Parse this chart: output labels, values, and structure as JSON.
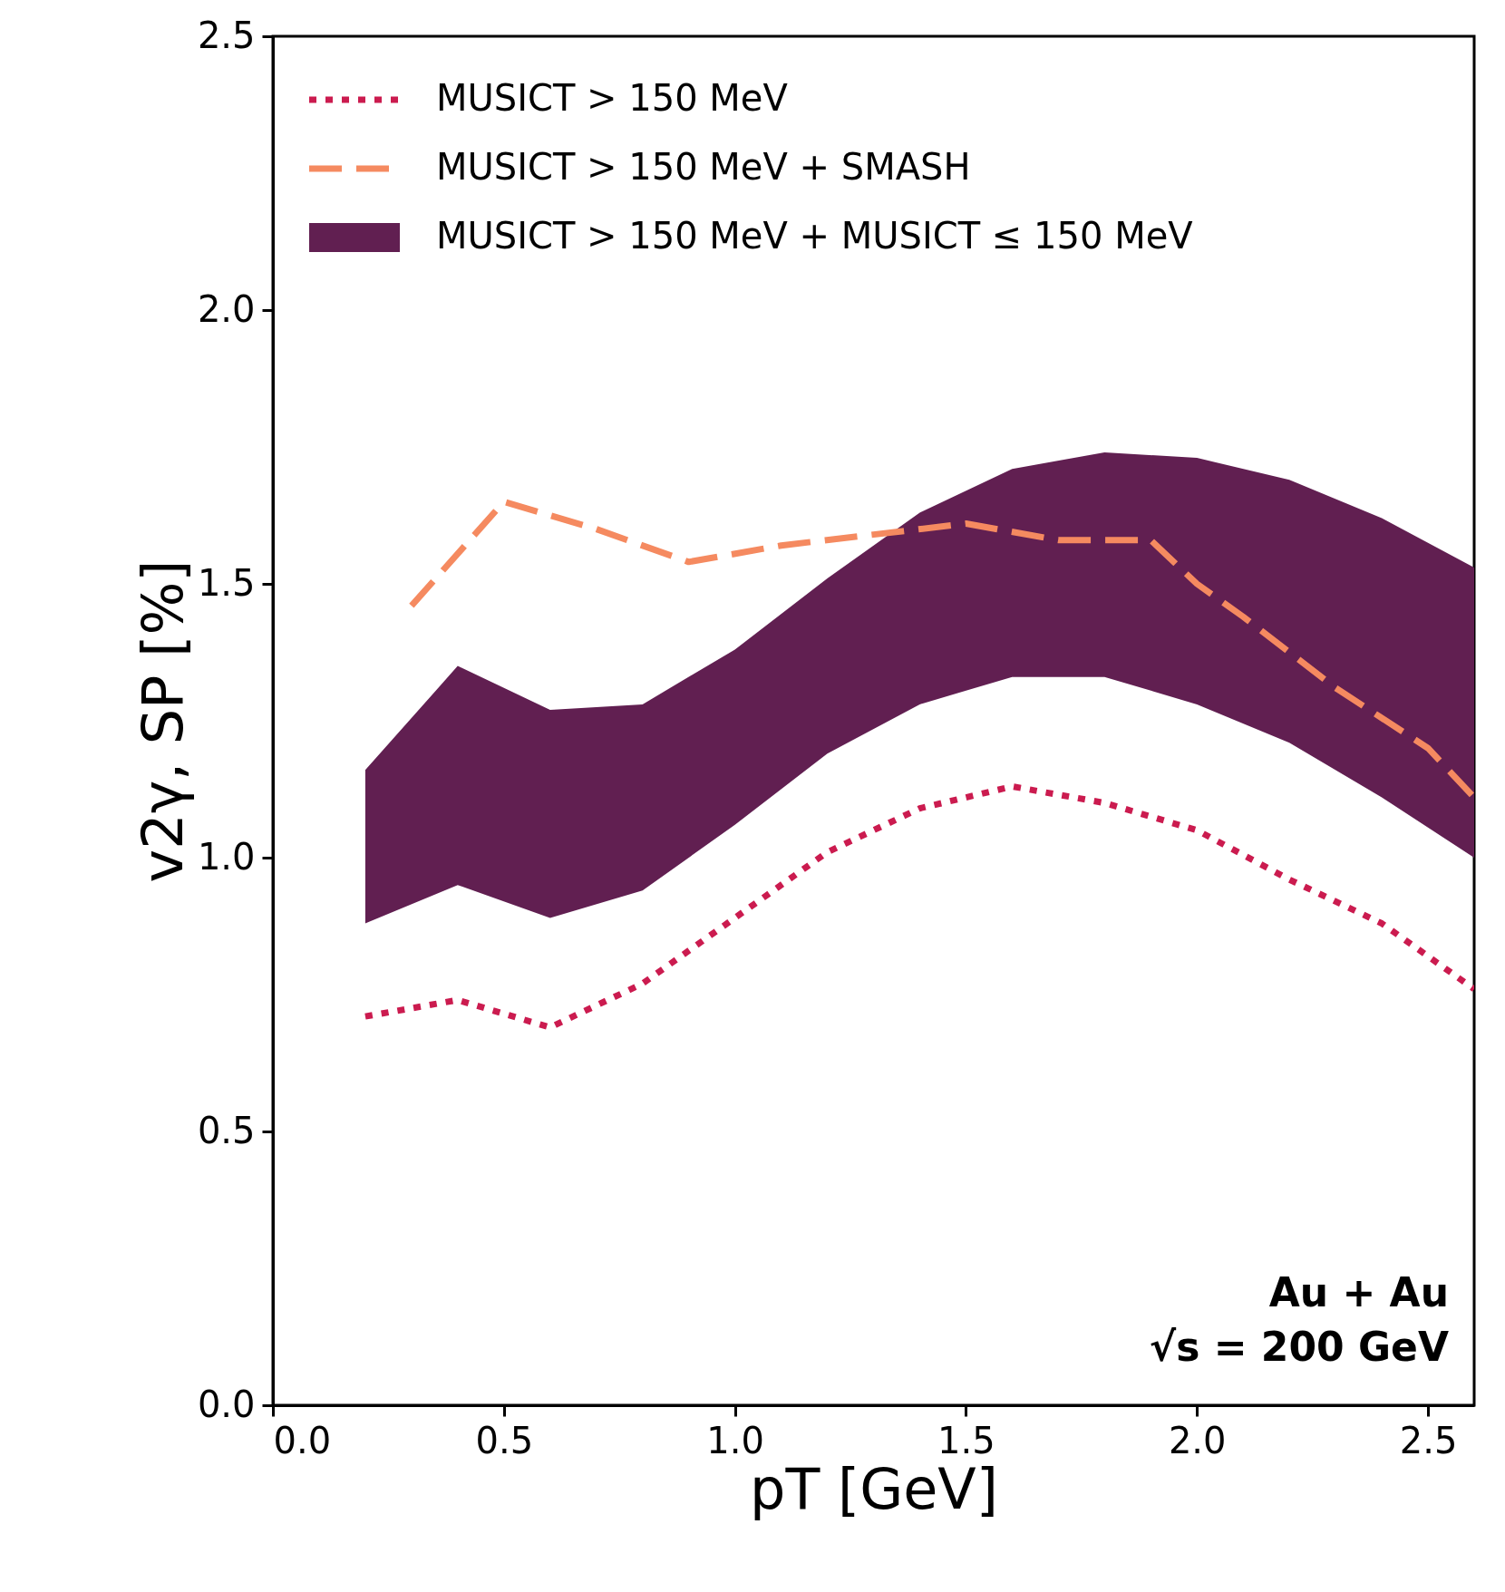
{
  "chart_data": {
    "type": "line",
    "xlabel": "pT [GeV]",
    "ylabel": "v2γ, SP [%]",
    "xlim": [
      0,
      2.6
    ],
    "xticks": [
      {
        "value": 0,
        "label": "0.0"
      },
      0.5,
      {
        "value": 1,
        "label": "1.0"
      },
      1.5,
      {
        "value": 2,
        "label": "2.0"
      },
      2.5
    ],
    "ylim": [
      0,
      2.5
    ],
    "yticks": [
      {
        "value": 0,
        "label": "0.0"
      },
      0.5,
      {
        "value": 1,
        "label": "1.0"
      },
      1.5,
      {
        "value": 2,
        "label": "2.0"
      },
      2.5
    ],
    "grid": false,
    "legend": "top left",
    "annotations": [
      "Au + Au",
      "√s = 200 GeV"
    ],
    "series": [
      {
        "name": "MUSICT > 150 MeV",
        "line_style": "dotted",
        "color": "#cb1b4f",
        "x": [
          0.2,
          0.4,
          0.6,
          0.8,
          1.0,
          1.2,
          1.4,
          1.6,
          1.8,
          2.0,
          2.2,
          2.4,
          2.6
        ],
        "values": [
          0.71,
          0.74,
          0.69,
          0.77,
          0.89,
          1.01,
          1.09,
          1.13,
          1.1,
          1.05,
          0.96,
          0.88,
          0.76
        ]
      },
      {
        "name": "MUSICT > 150 MeV + SMASH",
        "line_style": "dashed",
        "color": "#f58a60",
        "x": [
          0.3,
          0.5,
          0.7,
          0.9,
          1.1,
          1.3,
          1.5,
          1.7,
          1.9,
          2.0,
          2.1,
          2.3,
          2.5,
          2.6
        ],
        "values": [
          1.46,
          1.65,
          1.6,
          1.54,
          1.57,
          1.59,
          1.61,
          1.58,
          1.58,
          1.5,
          1.44,
          1.31,
          1.2,
          1.11
        ]
      },
      {
        "name": "MUSICT > 150 MeV + MUSICT ≤ 150 MeV",
        "type": "area",
        "color": "#611f51",
        "x": [
          0.2,
          0.4,
          0.6,
          0.8,
          1.0,
          1.2,
          1.4,
          1.6,
          1.8,
          2.0,
          2.2,
          2.4,
          2.6
        ],
        "values": [
          null,
          null,
          null,
          null,
          null,
          null,
          null,
          null,
          null,
          null,
          null,
          null,
          null
        ],
        "lower": [
          0.88,
          0.95,
          0.89,
          0.94,
          1.06,
          1.19,
          1.28,
          1.33,
          1.33,
          1.28,
          1.21,
          1.11,
          1.0
        ],
        "upper": [
          1.16,
          1.35,
          1.27,
          1.28,
          1.38,
          1.51,
          1.63,
          1.71,
          1.74,
          1.73,
          1.69,
          1.62,
          1.53
        ]
      }
    ]
  }
}
